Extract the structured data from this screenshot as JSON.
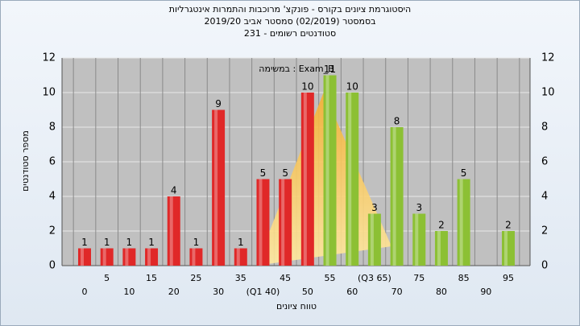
{
  "chart_data": {
    "type": "bar",
    "title": "היסטוגרמת ציונים בקורס - פונקצ' מרוכבות והתמרות אינטגרליות",
    "subtitle": "בסמסטר  (02/2019)  סמסטר אביב 2019/20",
    "subtitle2": "סטודנטים רשומים - 231",
    "annotation": "במשימה : Exam_B",
    "x_label": "טווח ציונים",
    "y_label": "מספר סטודנטים",
    "categories": [
      "0",
      "5",
      "10",
      "15",
      "20",
      "25",
      "30",
      "35",
      "(Q1 40)",
      "45",
      "50",
      "55",
      "60",
      "(Q3 65)",
      "70",
      "75",
      "80",
      "85",
      "90",
      "95"
    ],
    "values": [
      1,
      1,
      1,
      1,
      4,
      1,
      9,
      1,
      5,
      5,
      10,
      11,
      10,
      3,
      8,
      3,
      2,
      5,
      null,
      2
    ],
    "colors": [
      "#e02828",
      "#e02828",
      "#e02828",
      "#e02828",
      "#e02828",
      "#e02828",
      "#e02828",
      "#e02828",
      "#e02828",
      "#e02828",
      "#e02828",
      "#8cc034",
      "#8cc034",
      "#8cc034",
      "#8cc034",
      "#8cc034",
      "#8cc034",
      "#8cc034",
      "#8cc034",
      "#8cc034"
    ],
    "ylim": [
      0,
      12
    ],
    "yticks": [
      0,
      2,
      4,
      6,
      8,
      10,
      12
    ],
    "grid": true
  }
}
